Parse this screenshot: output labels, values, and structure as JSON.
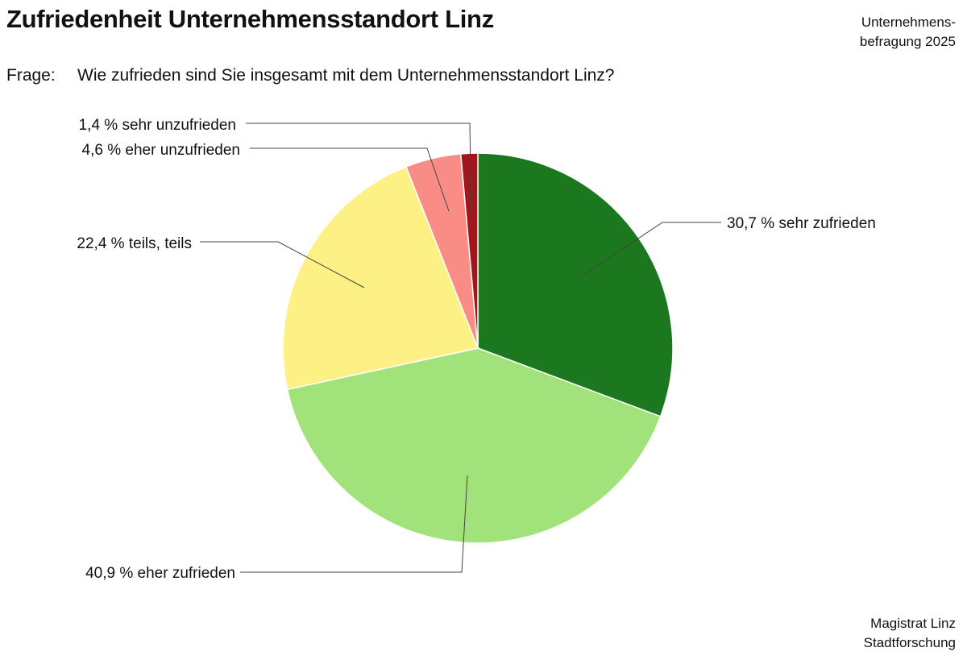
{
  "header": {
    "title": "Zufriedenheit Unternehmensstandort Linz",
    "survey_line1": "Unternehmens-",
    "survey_line2": "befragung 2025",
    "question_prefix": "Frage:",
    "question": "Wie zufrieden sind Sie insgesamt mit dem Unternehmensstandort Linz?"
  },
  "footer": {
    "source_line1": "Magistrat Linz",
    "source_line2": "Stadtforschung"
  },
  "chart_data": {
    "type": "pie",
    "title": "Zufriedenheit Unternehmensstandort Linz",
    "start": "12 o'clock",
    "direction": "clockwise",
    "slices": [
      {
        "label": "sehr zufrieden",
        "value": 30.7,
        "display": "30,7 %",
        "color": "#1b781f"
      },
      {
        "label": "eher zufrieden",
        "value": 40.9,
        "display": "40,9 %",
        "color": "#a2e27a"
      },
      {
        "label": "teils, teils",
        "value": 22.4,
        "display": "22,4 %",
        "color": "#fdf185"
      },
      {
        "label": "eher unzufrieden",
        "value": 4.6,
        "display": "4,6 %",
        "color": "#f98d85"
      },
      {
        "label": "sehr unzufrieden",
        "value": 1.4,
        "display": "1,4 %",
        "color": "#a5151c"
      }
    ]
  }
}
